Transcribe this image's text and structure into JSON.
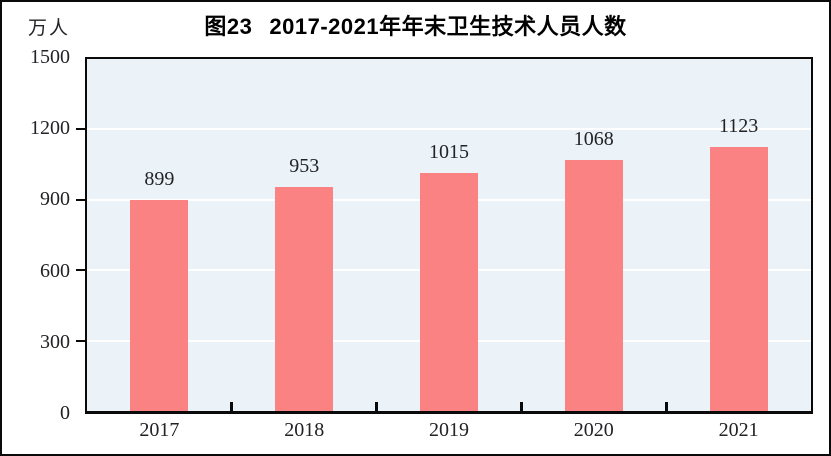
{
  "figure": {
    "title_fig_no": "图23",
    "title_text": "2017-2021年年末卫生技术人员人数",
    "unit_label": "万人"
  },
  "chart_data": {
    "type": "bar",
    "title": "图23 2017-2021年年末卫生技术人员人数",
    "series_name": "年末卫生技术人员人数",
    "categories": [
      "2017",
      "2018",
      "2019",
      "2020",
      "2021"
    ],
    "values": [
      899,
      953,
      1015,
      1068,
      1123
    ],
    "xlabel": "",
    "ylabel": "万人",
    "unit": "万人",
    "ylim": [
      0,
      1500
    ],
    "yticks": [
      0,
      300,
      600,
      900,
      1200,
      1500
    ],
    "grid": true,
    "gridline_values": [
      300,
      600,
      900,
      1200
    ],
    "legend": false,
    "bar_color": "#fa8282",
    "plot_bg": "#ebf3f8",
    "gridline_color": "#ffffff",
    "axis_color": "#0a0a0a",
    "text_color": "#222326"
  }
}
